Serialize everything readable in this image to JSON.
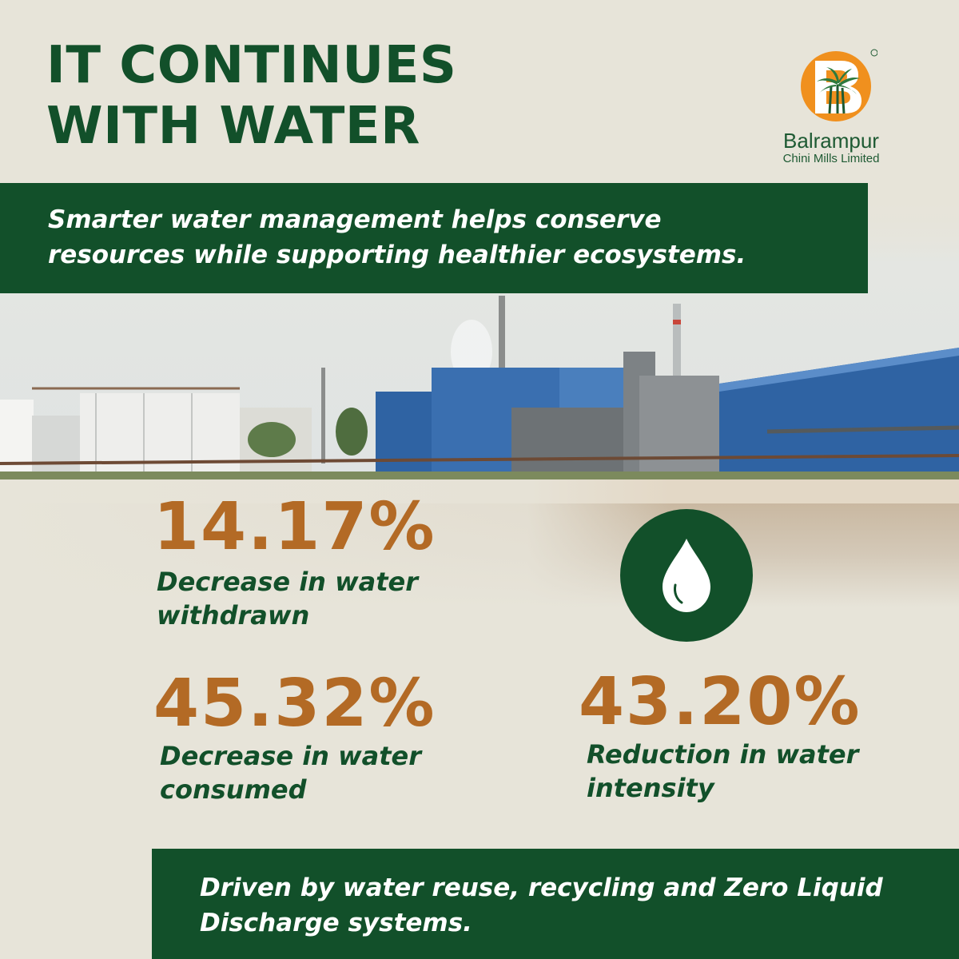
{
  "headline": {
    "line1": "IT CONTINUES",
    "line2": "WITH WATER"
  },
  "logo": {
    "name": "Balrampur",
    "subtitle": "Chini Mills Limited",
    "registered": "®",
    "letter": "B"
  },
  "banner_top": {
    "line1": "Smarter water management helps conserve",
    "line2": "resources while supporting healthier ecosystems."
  },
  "stats": [
    {
      "value": "14.17%",
      "label_line1": "Decrease in water",
      "label_line2": "withdrawn"
    },
    {
      "value": "45.32%",
      "label_line1": "Decrease in water",
      "label_line2": "consumed"
    },
    {
      "value": "43.20%",
      "label_line1": "Reduction in water",
      "label_line2": "intensity"
    }
  ],
  "icons": {
    "drop": "water-drop-icon"
  },
  "banner_bottom": {
    "line1": "Driven by water reuse, recycling and Zero Liquid",
    "line2": "Discharge systems."
  },
  "colors": {
    "background": "#e7e4d9",
    "brand_green": "#12502a",
    "accent_orange": "#b36a25",
    "logo_orange": "#f0901e",
    "factory_blue": "#2f63a3"
  }
}
